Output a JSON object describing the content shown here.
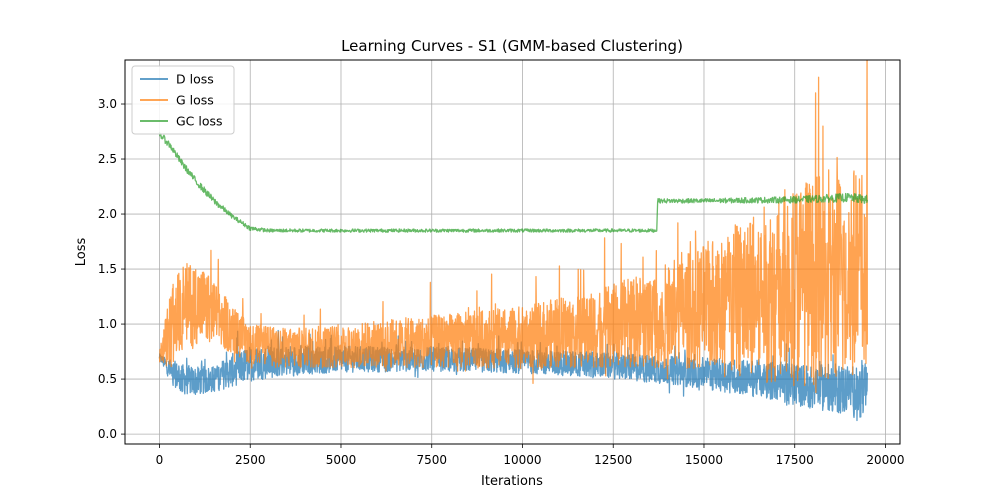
{
  "chart_data": {
    "type": "line",
    "title": "Learning Curves - S1 (GMM-based Clustering)",
    "xlabel": "Iterations",
    "ylabel": "Loss",
    "xlim": [
      -950,
      20400
    ],
    "ylim": [
      -0.09,
      3.4
    ],
    "xticks": [
      0,
      2500,
      5000,
      7500,
      10000,
      12500,
      15000,
      17500,
      20000
    ],
    "xtick_labels": [
      "0",
      "2500",
      "5000",
      "7500",
      "10000",
      "12500",
      "15000",
      "17500",
      "20000"
    ],
    "yticks": [
      0.0,
      0.5,
      1.0,
      1.5,
      2.0,
      2.5,
      3.0
    ],
    "ytick_labels": [
      "0.0",
      "0.5",
      "1.0",
      "1.5",
      "2.0",
      "2.5",
      "3.0"
    ],
    "grid": true,
    "legend_position": "top-left",
    "x_max_iteration": 19500,
    "series": [
      {
        "name": "D loss",
        "color": "#1f77b4",
        "x": [
          0,
          300,
          600,
          1000,
          1500,
          2000,
          2500,
          3500,
          5000,
          7500,
          10000,
          12500,
          14000,
          15000,
          16000,
          17000,
          17500,
          18000,
          18500,
          19000,
          19500
        ],
        "center": [
          0.7,
          0.58,
          0.5,
          0.48,
          0.5,
          0.58,
          0.64,
          0.67,
          0.68,
          0.68,
          0.66,
          0.62,
          0.58,
          0.55,
          0.52,
          0.48,
          0.45,
          0.43,
          0.42,
          0.4,
          0.38
        ],
        "spread": [
          0.03,
          0.1,
          0.14,
          0.13,
          0.12,
          0.15,
          0.16,
          0.14,
          0.12,
          0.11,
          0.11,
          0.12,
          0.13,
          0.14,
          0.16,
          0.18,
          0.19,
          0.2,
          0.22,
          0.24,
          0.26
        ]
      },
      {
        "name": "G loss",
        "color": "#ff7f0e",
        "x": [
          0,
          300,
          600,
          1000,
          1500,
          2000,
          2500,
          3500,
          5000,
          7500,
          10000,
          12500,
          14000,
          15000,
          16000,
          17000,
          17500,
          18000,
          18500,
          19000,
          19500
        ],
        "center": [
          0.7,
          0.95,
          1.15,
          1.2,
          1.1,
          0.95,
          0.82,
          0.78,
          0.8,
          0.84,
          0.88,
          0.98,
          1.08,
          1.15,
          1.22,
          1.3,
          1.38,
          1.4,
          1.4,
          1.45,
          1.5
        ],
        "spread": [
          0.05,
          0.35,
          0.4,
          0.38,
          0.3,
          0.22,
          0.18,
          0.18,
          0.2,
          0.24,
          0.28,
          0.38,
          0.48,
          0.58,
          0.7,
          0.85,
          0.95,
          0.95,
          0.95,
          1.0,
          1.0
        ]
      },
      {
        "name": "GC loss",
        "color": "#2ca02c",
        "x": [
          0,
          300,
          600,
          1000,
          1500,
          2000,
          2500,
          3000,
          5000,
          7500,
          10000,
          12500,
          13700,
          13720,
          15000,
          17500,
          19000,
          19500
        ],
        "center": [
          2.73,
          2.62,
          2.47,
          2.3,
          2.12,
          1.98,
          1.87,
          1.85,
          1.85,
          1.85,
          1.85,
          1.85,
          1.85,
          2.12,
          2.12,
          2.13,
          2.15,
          2.13
        ],
        "spread": [
          0.03,
          0.03,
          0.03,
          0.03,
          0.03,
          0.02,
          0.02,
          0.015,
          0.015,
          0.015,
          0.015,
          0.015,
          0.015,
          0.02,
          0.02,
          0.03,
          0.04,
          0.04
        ]
      }
    ]
  }
}
